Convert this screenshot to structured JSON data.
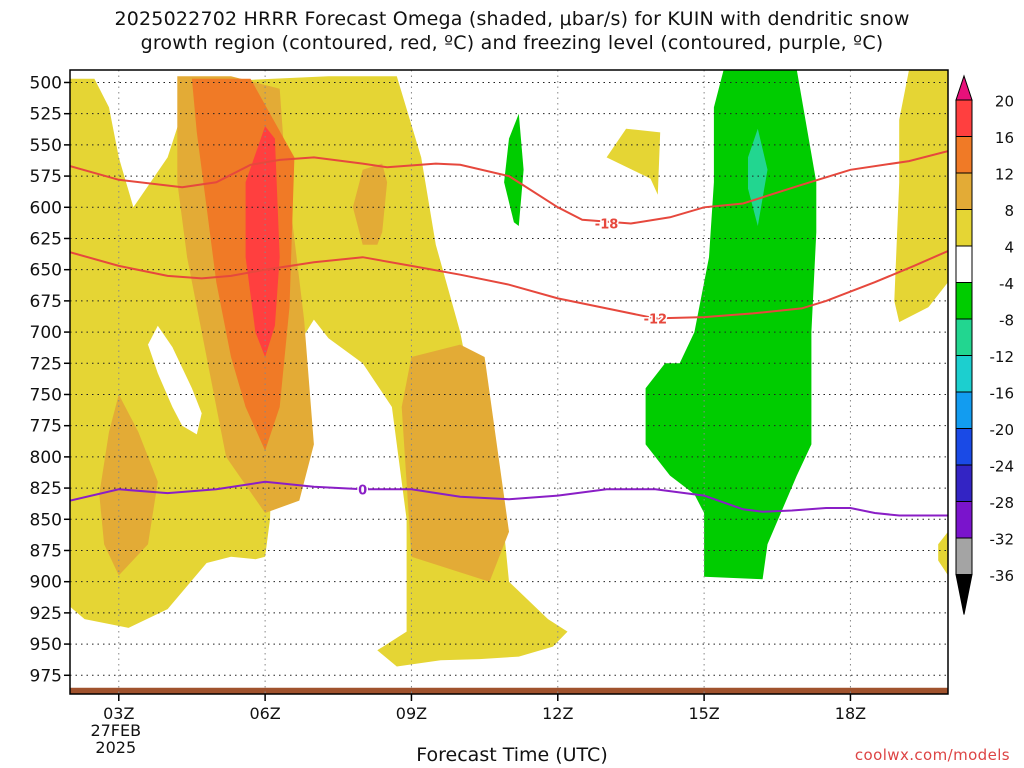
{
  "title_line1": "2025022702 HRRR Forecast Omega (shaded, μbar/s) for KUIN with dendritic snow",
  "title_line2": "growth region (contoured, red, ºC) and freezing level (contoured, purple, ºC)",
  "credit": "coolwx.com/models",
  "chart_data": {
    "type": "heatmap",
    "xlabel": "Forecast Time (UTC)",
    "x_unit": "hour of 27 Feb 2025 (UTC)",
    "xlim": [
      2.0,
      20.0
    ],
    "x_ticks": [
      {
        "x": 3,
        "label": "03Z",
        "date_line1": "27FEB",
        "date_line2": "2025"
      },
      {
        "x": 6,
        "label": "06Z"
      },
      {
        "x": 9,
        "label": "09Z"
      },
      {
        "x": 12,
        "label": "12Z"
      },
      {
        "x": 15,
        "label": "15Z"
      },
      {
        "x": 18,
        "label": "18Z"
      }
    ],
    "ylabel": "",
    "y_unit": "hPa",
    "ylim": [
      990,
      490
    ],
    "y_ticks": [
      "500",
      "525",
      "550",
      "575",
      "600",
      "625",
      "650",
      "675",
      "700",
      "725",
      "750",
      "775",
      "800",
      "825",
      "850",
      "875",
      "900",
      "925",
      "950",
      "975"
    ],
    "grid": true,
    "ground_color": "#a0522d",
    "colorbar": {
      "labels": [
        "20",
        "16",
        "12",
        "8",
        "4",
        "-4",
        "-8",
        "-12",
        "-16",
        "-20",
        "-24",
        "-28",
        "-32",
        "-36"
      ],
      "colors": [
        "#ff3f3f",
        "#f07a26",
        "#e3ab36",
        "#e5d534",
        "#ffffff",
        "#00cc00",
        "#22d690",
        "#1ccfcf",
        "#129cf0",
        "#1a4ae6",
        "#3324c4",
        "#7a14cc",
        "#a4a4a4"
      ],
      "over_color": "#e8107a",
      "under_color": "#000000"
    },
    "omega_regions": [
      {
        "level": "4 to 8",
        "color": "#e5d534",
        "points": [
          [
            2.0,
            497
          ],
          [
            2.5,
            497
          ],
          [
            2.8,
            520
          ],
          [
            3.0,
            560
          ],
          [
            3.3,
            600
          ],
          [
            4.0,
            560
          ],
          [
            4.5,
            500
          ],
          [
            7.3,
            495
          ],
          [
            8.7,
            495
          ],
          [
            9.2,
            560
          ],
          [
            9.5,
            630
          ],
          [
            10.0,
            700
          ],
          [
            10.3,
            760
          ],
          [
            10.6,
            810
          ],
          [
            10.9,
            860
          ],
          [
            11.0,
            900
          ],
          [
            11.8,
            930
          ],
          [
            12.2,
            940
          ],
          [
            11.9,
            952
          ],
          [
            11.2,
            960
          ],
          [
            10.4,
            962
          ],
          [
            9.6,
            963
          ],
          [
            8.7,
            968
          ],
          [
            8.3,
            955
          ],
          [
            8.9,
            940
          ],
          [
            8.9,
            850
          ],
          [
            8.6,
            760
          ],
          [
            8.0,
            725
          ],
          [
            7.3,
            705
          ],
          [
            7.0,
            690
          ],
          [
            6.2,
            740
          ],
          [
            6.1,
            850
          ],
          [
            6.0,
            880
          ],
          [
            5.8,
            882
          ],
          [
            5.3,
            880
          ],
          [
            4.8,
            885
          ],
          [
            4.0,
            922
          ],
          [
            3.2,
            937
          ],
          [
            2.3,
            930
          ],
          [
            2.0,
            920
          ]
        ]
      },
      {
        "level": "4 to 8",
        "color": "#e5d534",
        "points": [
          [
            13.0,
            560
          ],
          [
            13.4,
            537
          ],
          [
            14.1,
            540
          ],
          [
            14.05,
            590
          ],
          [
            13.9,
            577
          ]
        ]
      },
      {
        "level": "4 to 8",
        "color": "#e5d534",
        "points": [
          [
            19.2,
            490
          ],
          [
            20.0,
            490
          ],
          [
            20.0,
            660
          ],
          [
            19.6,
            680
          ],
          [
            19.0,
            692
          ],
          [
            18.9,
            675
          ],
          [
            19.0,
            580
          ],
          [
            19.0,
            530
          ]
        ]
      },
      {
        "level": "4 to 8",
        "color": "#e5d534",
        "points": [
          [
            19.8,
            870
          ],
          [
            20.0,
            860
          ],
          [
            20.0,
            895
          ],
          [
            19.8,
            883
          ]
        ]
      },
      {
        "level": "< 4",
        "color": "#ffffff",
        "points": [
          [
            3.6,
            710
          ],
          [
            3.8,
            695
          ],
          [
            4.1,
            712
          ],
          [
            4.5,
            745
          ],
          [
            4.7,
            765
          ],
          [
            4.6,
            782
          ],
          [
            4.3,
            775
          ],
          [
            4.1,
            760
          ],
          [
            3.8,
            733
          ]
        ]
      },
      {
        "level": "8 to 12",
        "color": "#e3ab36",
        "points": [
          [
            4.2,
            495
          ],
          [
            5.3,
            495
          ],
          [
            6.3,
            505
          ],
          [
            6.4,
            560
          ],
          [
            6.8,
            690
          ],
          [
            7.0,
            790
          ],
          [
            6.7,
            835
          ],
          [
            6.0,
            845
          ],
          [
            5.2,
            800
          ],
          [
            4.8,
            720
          ],
          [
            4.4,
            640
          ],
          [
            4.2,
            580
          ]
        ]
      },
      {
        "level": "8 to 12",
        "color": "#e3ab36",
        "points": [
          [
            8.0,
            570
          ],
          [
            8.4,
            565
          ],
          [
            8.5,
            580
          ],
          [
            8.4,
            620
          ],
          [
            8.3,
            630
          ],
          [
            8.0,
            630
          ],
          [
            7.8,
            600
          ]
        ]
      },
      {
        "level": "8 to 12",
        "color": "#e3ab36",
        "points": [
          [
            3.0,
            750
          ],
          [
            3.4,
            780
          ],
          [
            3.8,
            820
          ],
          [
            3.6,
            870
          ],
          [
            3.0,
            895
          ],
          [
            2.7,
            870
          ],
          [
            2.6,
            830
          ],
          [
            2.8,
            780
          ]
        ]
      },
      {
        "level": "8 to 12",
        "color": "#e3ab36",
        "points": [
          [
            9.0,
            720
          ],
          [
            10.0,
            710
          ],
          [
            10.5,
            720
          ],
          [
            11.0,
            860
          ],
          [
            10.6,
            900
          ],
          [
            9.0,
            880
          ],
          [
            8.8,
            760
          ]
        ]
      },
      {
        "level": "12 to 16",
        "color": "#f07a26",
        "points": [
          [
            4.5,
            497
          ],
          [
            5.7,
            497
          ],
          [
            6.6,
            560
          ],
          [
            6.5,
            680
          ],
          [
            6.3,
            760
          ],
          [
            6.0,
            795
          ],
          [
            5.6,
            760
          ],
          [
            5.3,
            720
          ],
          [
            5.0,
            660
          ],
          [
            4.8,
            600
          ],
          [
            4.6,
            540
          ]
        ]
      },
      {
        "level": "16 to 20",
        "color": "#ff3f3f",
        "points": [
          [
            6.0,
            535
          ],
          [
            6.2,
            545
          ],
          [
            6.3,
            640
          ],
          [
            6.2,
            695
          ],
          [
            6.0,
            720
          ],
          [
            5.8,
            700
          ],
          [
            5.6,
            640
          ],
          [
            5.6,
            580
          ]
        ]
      },
      {
        "level": "-4 to -8",
        "color": "#00cc00",
        "points": [
          [
            15.4,
            490
          ],
          [
            16.9,
            490
          ],
          [
            17.3,
            580
          ],
          [
            17.3,
            620
          ],
          [
            17.2,
            700
          ],
          [
            17.2,
            790
          ],
          [
            16.9,
            815
          ],
          [
            16.3,
            870
          ],
          [
            16.2,
            898
          ],
          [
            15.0,
            896
          ],
          [
            15.0,
            845
          ],
          [
            14.8,
            830
          ],
          [
            14.3,
            815
          ],
          [
            13.8,
            790
          ],
          [
            13.8,
            745
          ],
          [
            14.2,
            725
          ],
          [
            14.5,
            725
          ],
          [
            14.8,
            700
          ],
          [
            15.1,
            640
          ],
          [
            15.2,
            580
          ],
          [
            15.2,
            520
          ]
        ]
      },
      {
        "level": "-4 to -8",
        "color": "#00cc00",
        "points": [
          [
            11.2,
            525
          ],
          [
            11.3,
            570
          ],
          [
            11.2,
            615
          ],
          [
            11.1,
            612
          ],
          [
            10.9,
            580
          ],
          [
            11.0,
            545
          ]
        ]
      },
      {
        "level": "-8 to -12",
        "color": "#22d690",
        "points": [
          [
            16.1,
            537
          ],
          [
            16.3,
            570
          ],
          [
            16.1,
            615
          ],
          [
            15.9,
            585
          ],
          [
            15.9,
            560
          ]
        ]
      }
    ],
    "contours": [
      {
        "name": "-18",
        "color": "#e6483d",
        "label_at": [
          13.0,
          613
        ],
        "points": [
          [
            2.0,
            567
          ],
          [
            3.0,
            578
          ],
          [
            4.3,
            584
          ],
          [
            5.0,
            580
          ],
          [
            5.7,
            566
          ],
          [
            6.3,
            562
          ],
          [
            7.0,
            560
          ],
          [
            8.0,
            565
          ],
          [
            8.5,
            568
          ],
          [
            9.5,
            565
          ],
          [
            10.0,
            566
          ],
          [
            11.0,
            575
          ],
          [
            12.0,
            600
          ],
          [
            12.5,
            610
          ],
          [
            13.5,
            613
          ],
          [
            14.3,
            608
          ],
          [
            15.0,
            600
          ],
          [
            15.8,
            597
          ],
          [
            17.0,
            582
          ],
          [
            18.0,
            570
          ],
          [
            19.2,
            563
          ],
          [
            20.0,
            555
          ]
        ]
      },
      {
        "name": "-12",
        "color": "#e6483d",
        "label_at": [
          14.0,
          689
        ],
        "points": [
          [
            2.0,
            636
          ],
          [
            3.0,
            647
          ],
          [
            4.0,
            655
          ],
          [
            4.7,
            657
          ],
          [
            5.3,
            655
          ],
          [
            6.0,
            650
          ],
          [
            7.0,
            644
          ],
          [
            8.0,
            640
          ],
          [
            9.0,
            647
          ],
          [
            10.0,
            654
          ],
          [
            11.0,
            662
          ],
          [
            12.0,
            673
          ],
          [
            13.0,
            681
          ],
          [
            14.0,
            689
          ],
          [
            15.0,
            688
          ],
          [
            16.0,
            685
          ],
          [
            17.0,
            681
          ],
          [
            17.5,
            675
          ],
          [
            18.5,
            660
          ],
          [
            19.3,
            647
          ],
          [
            20.0,
            635
          ]
        ]
      },
      {
        "name": "0",
        "color": "#8a1ec6",
        "label_at": [
          8.0,
          826
        ],
        "points": [
          [
            2.0,
            835
          ],
          [
            3.0,
            826
          ],
          [
            4.0,
            829
          ],
          [
            5.0,
            826
          ],
          [
            6.0,
            820
          ],
          [
            7.0,
            824
          ],
          [
            8.0,
            826
          ],
          [
            9.0,
            826
          ],
          [
            10.0,
            832
          ],
          [
            11.0,
            834
          ],
          [
            12.0,
            831
          ],
          [
            13.0,
            826
          ],
          [
            14.0,
            826
          ],
          [
            15.0,
            831
          ],
          [
            15.8,
            842
          ],
          [
            16.2,
            844
          ],
          [
            16.8,
            843
          ],
          [
            17.5,
            841
          ],
          [
            18.0,
            841
          ],
          [
            18.5,
            845
          ],
          [
            19.0,
            847
          ],
          [
            20.0,
            847
          ]
        ]
      }
    ],
    "ground_pressure": 985
  }
}
